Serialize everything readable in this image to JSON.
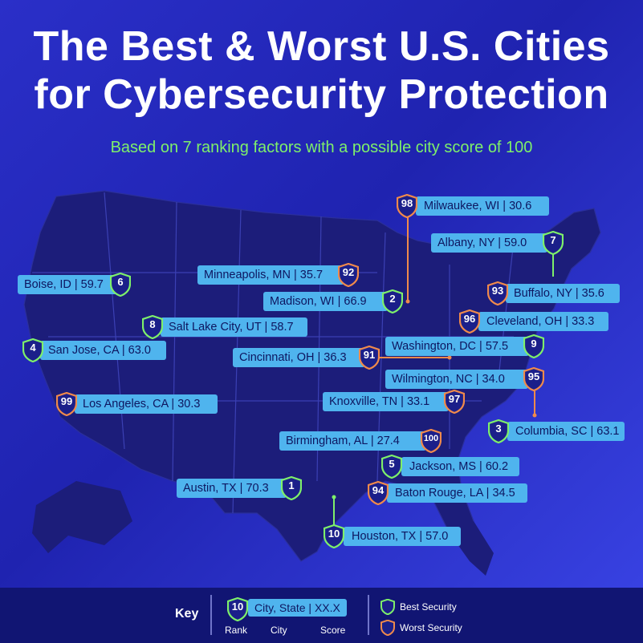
{
  "title_line1": "The Best & Worst U.S. Cities",
  "title_line2": "for Cybersecurity Protection",
  "subtitle": "Based on 7 ranking factors with a possible city score of 100",
  "colors": {
    "best": "#7ef06a",
    "worst": "#f08a4b",
    "label_bg": "#4fb4ee",
    "map": "#1c1d7a"
  },
  "cities": [
    {
      "rank": "98",
      "label": "Milwaukee, WI | 30.6",
      "type": "worst"
    },
    {
      "rank": "7",
      "label": "Albany, NY | 59.0",
      "type": "best"
    },
    {
      "rank": "6",
      "label": "Boise, ID | 59.7",
      "type": "best"
    },
    {
      "rank": "92",
      "label": "Minneapolis, MN | 35.7",
      "type": "worst"
    },
    {
      "rank": "93",
      "label": "Buffalo, NY | 35.6",
      "type": "worst"
    },
    {
      "rank": "2",
      "label": "Madison, WI | 66.9",
      "type": "best"
    },
    {
      "rank": "8",
      "label": "Salt Lake City, UT | 58.7",
      "type": "best"
    },
    {
      "rank": "96",
      "label": "Cleveland, OH | 33.3",
      "type": "worst"
    },
    {
      "rank": "4",
      "label": "San Jose, CA | 63.0",
      "type": "best"
    },
    {
      "rank": "9",
      "label": "Washington, DC | 57.5",
      "type": "best"
    },
    {
      "rank": "91",
      "label": "Cincinnati, OH | 36.3",
      "type": "worst"
    },
    {
      "rank": "95",
      "label": "Wilmington, NC | 34.0",
      "type": "worst"
    },
    {
      "rank": "99",
      "label": "Los Angeles, CA | 30.3",
      "type": "worst"
    },
    {
      "rank": "97",
      "label": "Knoxville, TN | 33.1",
      "type": "worst"
    },
    {
      "rank": "3",
      "label": "Columbia, SC | 63.1",
      "type": "best"
    },
    {
      "rank": "100",
      "label": "Birmingham, AL | 27.4",
      "type": "worst"
    },
    {
      "rank": "5",
      "label": "Jackson, MS | 60.2",
      "type": "best"
    },
    {
      "rank": "1",
      "label": "Austin, TX | 70.3",
      "type": "best"
    },
    {
      "rank": "94",
      "label": "Baton Rouge, LA | 34.5",
      "type": "worst"
    },
    {
      "rank": "10",
      "label": "Houston, TX | 57.0",
      "type": "best"
    }
  ],
  "key": {
    "title": "Key",
    "example_rank": "10",
    "example_label": "City, State | XX.X",
    "rank_caption": "Rank",
    "city_caption": "City",
    "score_caption": "Score",
    "best_label": "Best Security",
    "worst_label": "Worst Security"
  }
}
